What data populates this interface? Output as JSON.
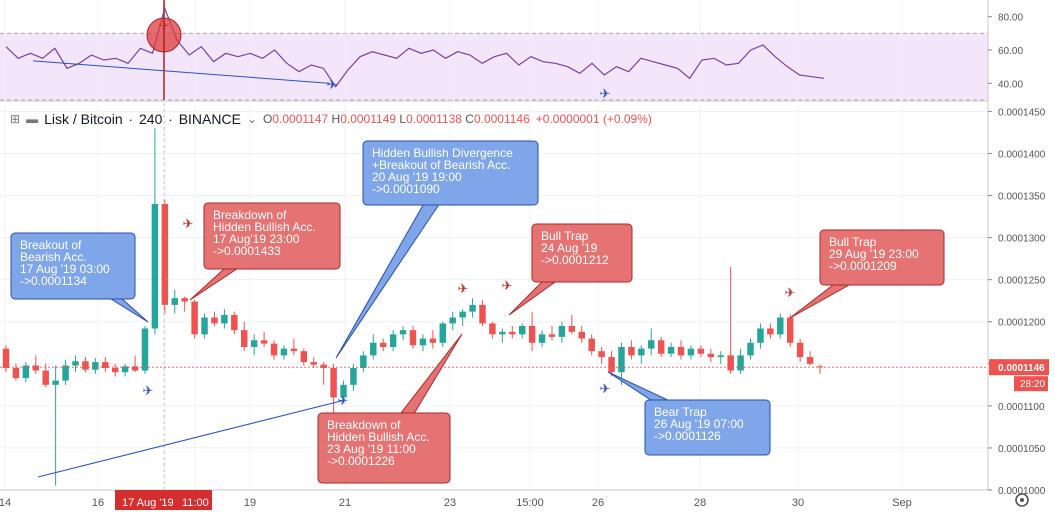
{
  "header": {
    "symbol": "Lisk / Bitcoin",
    "interval": "240",
    "exchange": "BINANCE",
    "open_label": "O",
    "open": "0.0001147",
    "high_label": "H",
    "high": "0.0001149",
    "low_label": "L",
    "low": "0.0001138",
    "close_label": "C",
    "close": "0.0001146",
    "change": "+0.0000001 (+0.09%)"
  },
  "colors": {
    "up": "#26a69a",
    "down": "#ef5350",
    "rsi_line": "#7b3fa0",
    "rsi_band": "#f3e6fb",
    "trendline": "#2b50c8",
    "callout_red": "#e57373",
    "callout_blue": "#7fa6e8",
    "price_tag": "#ef5350"
  },
  "price_tag": {
    "value": "0.0001146",
    "countdown": "28:20"
  },
  "crosshair_date": "17 Aug '19",
  "crosshair_time": "11:00",
  "chart_data": [
    {
      "type": "line",
      "panel": "RSI",
      "ylim": [
        30,
        90
      ],
      "yticks": [
        "80.00",
        "60.00",
        "40.00"
      ],
      "band": [
        30,
        70
      ],
      "x": [
        "14",
        "14",
        "14",
        "14",
        "15",
        "15",
        "15",
        "15",
        "16",
        "16",
        "16",
        "16",
        "17",
        "17",
        "17",
        "17",
        "18",
        "18",
        "18",
        "18",
        "19",
        "19",
        "19",
        "19",
        "20",
        "20",
        "20",
        "20",
        "21",
        "21",
        "21",
        "21",
        "22",
        "22",
        "22",
        "22",
        "23",
        "23",
        "23",
        "23",
        "24",
        "24",
        "24",
        "24",
        "25",
        "25",
        "25",
        "25",
        "26",
        "26",
        "26",
        "26",
        "27",
        "27",
        "27",
        "27",
        "28",
        "28",
        "28",
        "28",
        "29",
        "29",
        "29",
        "29",
        "30",
        "30",
        "30",
        "30"
      ],
      "values": [
        62,
        55,
        58,
        55,
        61,
        49,
        52,
        57,
        54,
        55,
        52,
        61,
        58,
        85,
        66,
        57,
        62,
        53,
        58,
        56,
        58,
        55,
        60,
        52,
        47,
        51,
        49,
        38,
        48,
        56,
        59,
        57,
        55,
        61,
        58,
        60,
        55,
        59,
        57,
        52,
        56,
        58,
        51,
        56,
        53,
        52,
        50,
        46,
        52,
        45,
        50,
        47,
        55,
        53,
        51,
        49,
        43,
        54,
        55,
        51,
        52,
        60,
        63,
        56,
        50,
        45,
        44,
        43
      ],
      "annotations": [
        {
          "type": "divergence",
          "date": "17 Aug '19",
          "color": "#ef5350"
        },
        {
          "type": "trendline",
          "color": "#2b50c8"
        },
        {
          "type": "rocket",
          "color": "#2b50c8"
        },
        {
          "type": "rocket",
          "color": "#2b50c8"
        }
      ]
    },
    {
      "type": "candlestick",
      "panel": "price",
      "title": "Lisk / Bitcoin · 240 · BINANCE",
      "ylim": [
        0.0001,
        0.000146
      ],
      "yticks": [
        "0.0001450",
        "0.0001400",
        "0.0001350",
        "0.0001300",
        "0.0001250",
        "0.0001200",
        "0.0001150",
        "0.0001100",
        "0.0001050",
        "0.0001000"
      ],
      "xticks": [
        "14",
        "16",
        "17 Aug '19",
        "11:00",
        "19",
        "21",
        "23",
        "15:00",
        "26",
        "28",
        "30",
        "Sep"
      ],
      "price_line": 0.0001146,
      "ohlc_note": "4h candles, values in BTC, read off axis",
      "candles": [
        {
          "o": 0.0001168,
          "h": 0.0001172,
          "l": 0.000114,
          "c": 0.0001145
        },
        {
          "o": 0.0001145,
          "h": 0.000115,
          "l": 0.000113,
          "c": 0.0001133
        },
        {
          "o": 0.0001133,
          "h": 0.0001152,
          "l": 0.0001128,
          "c": 0.0001148
        },
        {
          "o": 0.0001148,
          "h": 0.000116,
          "l": 0.0001138,
          "c": 0.0001142
        },
        {
          "o": 0.0001142,
          "h": 0.000115,
          "l": 0.0001122,
          "c": 0.0001125
        },
        {
          "o": 0.0001125,
          "h": 0.0001148,
          "l": 0.0001005,
          "c": 0.000113
        },
        {
          "o": 0.000113,
          "h": 0.0001155,
          "l": 0.0001125,
          "c": 0.0001148
        },
        {
          "o": 0.0001148,
          "h": 0.000116,
          "l": 0.000114,
          "c": 0.0001153
        },
        {
          "o": 0.0001153,
          "h": 0.0001158,
          "l": 0.000114,
          "c": 0.0001143
        },
        {
          "o": 0.0001143,
          "h": 0.0001157,
          "l": 0.0001138,
          "c": 0.0001152
        },
        {
          "o": 0.0001152,
          "h": 0.0001158,
          "l": 0.000114,
          "c": 0.0001145
        },
        {
          "o": 0.0001145,
          "h": 0.000115,
          "l": 0.0001135,
          "c": 0.000114
        },
        {
          "o": 0.000114,
          "h": 0.000115,
          "l": 0.0001135,
          "c": 0.0001147
        },
        {
          "o": 0.0001147,
          "h": 0.000116,
          "l": 0.000114,
          "c": 0.0001142
        },
        {
          "o": 0.0001142,
          "h": 0.0001195,
          "l": 0.0001138,
          "c": 0.0001192
        },
        {
          "o": 0.0001192,
          "h": 0.000143,
          "l": 0.0001185,
          "c": 0.000134
        },
        {
          "o": 0.000134,
          "h": 0.0001345,
          "l": 0.000121,
          "c": 0.000122
        },
        {
          "o": 0.000122,
          "h": 0.0001238,
          "l": 0.000121,
          "c": 0.0001228
        },
        {
          "o": 0.0001228,
          "h": 0.000123,
          "l": 0.0001212,
          "c": 0.0001224
        },
        {
          "o": 0.0001224,
          "h": 0.0001226,
          "l": 0.000118,
          "c": 0.0001185
        },
        {
          "o": 0.0001185,
          "h": 0.000121,
          "l": 0.000118,
          "c": 0.0001205
        },
        {
          "o": 0.0001205,
          "h": 0.0001212,
          "l": 0.0001195,
          "c": 0.0001198
        },
        {
          "o": 0.0001198,
          "h": 0.0001215,
          "l": 0.0001192,
          "c": 0.0001208
        },
        {
          "o": 0.0001208,
          "h": 0.0001212,
          "l": 0.0001185,
          "c": 0.000119
        },
        {
          "o": 0.000119,
          "h": 0.00012,
          "l": 0.0001165,
          "c": 0.000117
        },
        {
          "o": 0.000117,
          "h": 0.0001185,
          "l": 0.000116,
          "c": 0.0001178
        },
        {
          "o": 0.0001178,
          "h": 0.0001188,
          "l": 0.000117,
          "c": 0.0001174
        },
        {
          "o": 0.0001174,
          "h": 0.0001178,
          "l": 0.0001155,
          "c": 0.000116
        },
        {
          "o": 0.000116,
          "h": 0.0001172,
          "l": 0.0001155,
          "c": 0.0001168
        },
        {
          "o": 0.0001168,
          "h": 0.000118,
          "l": 0.000116,
          "c": 0.0001165
        },
        {
          "o": 0.0001165,
          "h": 0.0001168,
          "l": 0.0001148,
          "c": 0.0001152
        },
        {
          "o": 0.0001152,
          "h": 0.0001158,
          "l": 0.0001145,
          "c": 0.0001149
        },
        {
          "o": 0.0001149,
          "h": 0.0001152,
          "l": 0.0001125,
          "c": 0.0001145
        },
        {
          "o": 0.0001145,
          "h": 0.000115,
          "l": 0.000109,
          "c": 0.000111
        },
        {
          "o": 0.000111,
          "h": 0.000113,
          "l": 0.0001105,
          "c": 0.0001125
        },
        {
          "o": 0.0001125,
          "h": 0.000115,
          "l": 0.0001118,
          "c": 0.0001145
        },
        {
          "o": 0.0001145,
          "h": 0.0001165,
          "l": 0.000114,
          "c": 0.000116
        },
        {
          "o": 0.000116,
          "h": 0.0001185,
          "l": 0.0001155,
          "c": 0.0001175
        },
        {
          "o": 0.0001175,
          "h": 0.000118,
          "l": 0.0001165,
          "c": 0.000117
        },
        {
          "o": 0.000117,
          "h": 0.000119,
          "l": 0.0001165,
          "c": 0.0001185
        },
        {
          "o": 0.0001185,
          "h": 0.0001195,
          "l": 0.0001178,
          "c": 0.000119
        },
        {
          "o": 0.000119,
          "h": 0.0001195,
          "l": 0.0001168,
          "c": 0.0001172
        },
        {
          "o": 0.0001172,
          "h": 0.0001185,
          "l": 0.0001165,
          "c": 0.000118
        },
        {
          "o": 0.000118,
          "h": 0.000119,
          "l": 0.0001168,
          "c": 0.0001175
        },
        {
          "o": 0.0001175,
          "h": 0.00012,
          "l": 0.000117,
          "c": 0.0001198
        },
        {
          "o": 0.0001198,
          "h": 0.0001212,
          "l": 0.000119,
          "c": 0.0001205
        },
        {
          "o": 0.0001205,
          "h": 0.0001215,
          "l": 0.0001195,
          "c": 0.0001212
        },
        {
          "o": 0.0001212,
          "h": 0.0001228,
          "l": 0.0001205,
          "c": 0.000122
        },
        {
          "o": 0.000122,
          "h": 0.0001226,
          "l": 0.0001195,
          "c": 0.0001198
        },
        {
          "o": 0.0001198,
          "h": 0.00012,
          "l": 0.000118,
          "c": 0.0001185
        },
        {
          "o": 0.0001185,
          "h": 0.0001192,
          "l": 0.0001175,
          "c": 0.0001188
        },
        {
          "o": 0.0001188,
          "h": 0.0001195,
          "l": 0.000118,
          "c": 0.0001185
        },
        {
          "o": 0.0001185,
          "h": 0.0001198,
          "l": 0.000118,
          "c": 0.0001195
        },
        {
          "o": 0.0001195,
          "h": 0.0001212,
          "l": 0.0001165,
          "c": 0.0001175
        },
        {
          "o": 0.0001175,
          "h": 0.000119,
          "l": 0.000117,
          "c": 0.0001185
        },
        {
          "o": 0.0001185,
          "h": 0.0001195,
          "l": 0.0001178,
          "c": 0.0001182
        },
        {
          "o": 0.0001182,
          "h": 0.00012,
          "l": 0.0001175,
          "c": 0.0001195
        },
        {
          "o": 0.0001195,
          "h": 0.0001208,
          "l": 0.0001185,
          "c": 0.0001188
        },
        {
          "o": 0.0001188,
          "h": 0.0001195,
          "l": 0.0001175,
          "c": 0.000118
        },
        {
          "o": 0.000118,
          "h": 0.0001185,
          "l": 0.000116,
          "c": 0.0001165
        },
        {
          "o": 0.0001165,
          "h": 0.000117,
          "l": 0.000115,
          "c": 0.0001158
        },
        {
          "o": 0.0001158,
          "h": 0.0001165,
          "l": 0.0001135,
          "c": 0.000114
        },
        {
          "o": 0.000114,
          "h": 0.0001175,
          "l": 0.0001125,
          "c": 0.000117
        },
        {
          "o": 0.000117,
          "h": 0.0001178,
          "l": 0.0001155,
          "c": 0.000116
        },
        {
          "o": 0.000116,
          "h": 0.0001172,
          "l": 0.000115,
          "c": 0.0001168
        },
        {
          "o": 0.0001168,
          "h": 0.0001192,
          "l": 0.000116,
          "c": 0.0001178
        },
        {
          "o": 0.0001178,
          "h": 0.0001182,
          "l": 0.0001158,
          "c": 0.0001162
        },
        {
          "o": 0.0001162,
          "h": 0.0001175,
          "l": 0.0001158,
          "c": 0.000117
        },
        {
          "o": 0.000117,
          "h": 0.0001178,
          "l": 0.0001155,
          "c": 0.000116
        },
        {
          "o": 0.000116,
          "h": 0.0001172,
          "l": 0.0001155,
          "c": 0.0001168
        },
        {
          "o": 0.0001168,
          "h": 0.0001172,
          "l": 0.0001158,
          "c": 0.0001162
        },
        {
          "o": 0.0001162,
          "h": 0.0001168,
          "l": 0.0001152,
          "c": 0.0001158
        },
        {
          "o": 0.0001158,
          "h": 0.0001165,
          "l": 0.000115,
          "c": 0.000116
        },
        {
          "o": 0.000116,
          "h": 0.0001265,
          "l": 0.0001138,
          "c": 0.0001142
        },
        {
          "o": 0.0001142,
          "h": 0.0001168,
          "l": 0.0001138,
          "c": 0.000116
        },
        {
          "o": 0.000116,
          "h": 0.000118,
          "l": 0.0001155,
          "c": 0.0001175
        },
        {
          "o": 0.0001175,
          "h": 0.0001198,
          "l": 0.0001168,
          "c": 0.0001192
        },
        {
          "o": 0.0001192,
          "h": 0.0001198,
          "l": 0.000118,
          "c": 0.0001185
        },
        {
          "o": 0.0001185,
          "h": 0.000121,
          "l": 0.000118,
          "c": 0.0001205
        },
        {
          "o": 0.0001205,
          "h": 0.0001209,
          "l": 0.000117,
          "c": 0.0001175
        },
        {
          "o": 0.0001175,
          "h": 0.000118,
          "l": 0.0001152,
          "c": 0.0001158
        },
        {
          "o": 0.0001158,
          "h": 0.0001165,
          "l": 0.0001148,
          "c": 0.000115
        },
        {
          "o": 0.0001147,
          "h": 0.0001149,
          "l": 0.0001138,
          "c": 0.0001146
        }
      ],
      "annotations": [
        {
          "type": "callout",
          "color": "blue",
          "text": [
            "Breakout of",
            "Bearish Acc.",
            "17 Aug '19 03:00",
            "->0.0001134"
          ]
        },
        {
          "type": "callout",
          "color": "red",
          "text": [
            "Breakdown of",
            "Hidden Bullish Acc.",
            "17 Aug'19 23:00",
            "->0.0001433"
          ]
        },
        {
          "type": "callout",
          "color": "blue",
          "text": [
            "Hidden Bullish Divergence",
            "+Breakout of Bearish Acc.",
            "20 Aug '19 19:00",
            "->0.0001090"
          ]
        },
        {
          "type": "callout",
          "color": "red",
          "text": [
            "Bull Trap",
            "24 Aug '19",
            "->0.0001212"
          ]
        },
        {
          "type": "callout",
          "color": "red",
          "text": [
            "Bull Trap",
            "29 Aug '19 23:00",
            "->0.0001209"
          ]
        },
        {
          "type": "callout",
          "color": "red",
          "text": [
            "Breakdown of",
            "Hidden Bullish Acc.",
            "23 Aug '19 11:00",
            "->0.0001226"
          ]
        },
        {
          "type": "callout",
          "color": "blue",
          "text": [
            "Bear Trap",
            "26 Aug '19 07:00",
            "->0.0001126"
          ]
        }
      ]
    }
  ]
}
